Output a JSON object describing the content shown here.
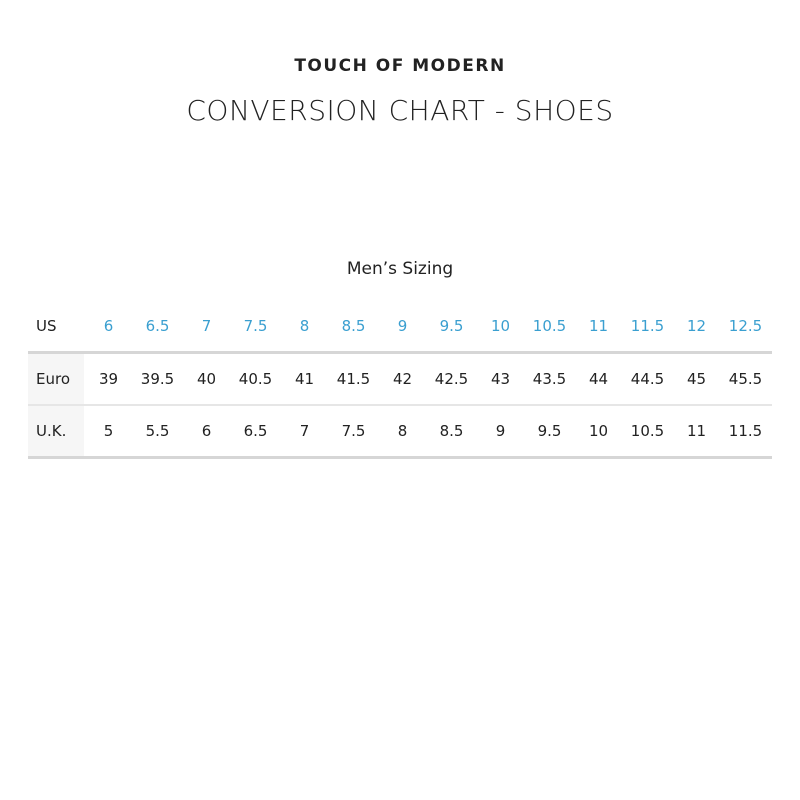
{
  "brand": "TOUCH OF MODERN",
  "title": "CONVERSION CHART - SHOES",
  "subtitle": "Men’s Sizing",
  "accent_color": "#3a9fd0",
  "rows": [
    {
      "label": "US",
      "values": [
        "6",
        "6.5",
        "7",
        "7.5",
        "8",
        "8.5",
        "9",
        "9.5",
        "10",
        "10.5",
        "11",
        "11.5",
        "12",
        "12.5"
      ]
    },
    {
      "label": "Euro",
      "values": [
        "39",
        "39.5",
        "40",
        "40.5",
        "41",
        "41.5",
        "42",
        "42.5",
        "43",
        "43.5",
        "44",
        "44.5",
        "45",
        "45.5"
      ]
    },
    {
      "label": "U.K.",
      "values": [
        "5",
        "5.5",
        "6",
        "6.5",
        "7",
        "7.5",
        "8",
        "8.5",
        "9",
        "9.5",
        "10",
        "10.5",
        "11",
        "11.5"
      ]
    }
  ]
}
